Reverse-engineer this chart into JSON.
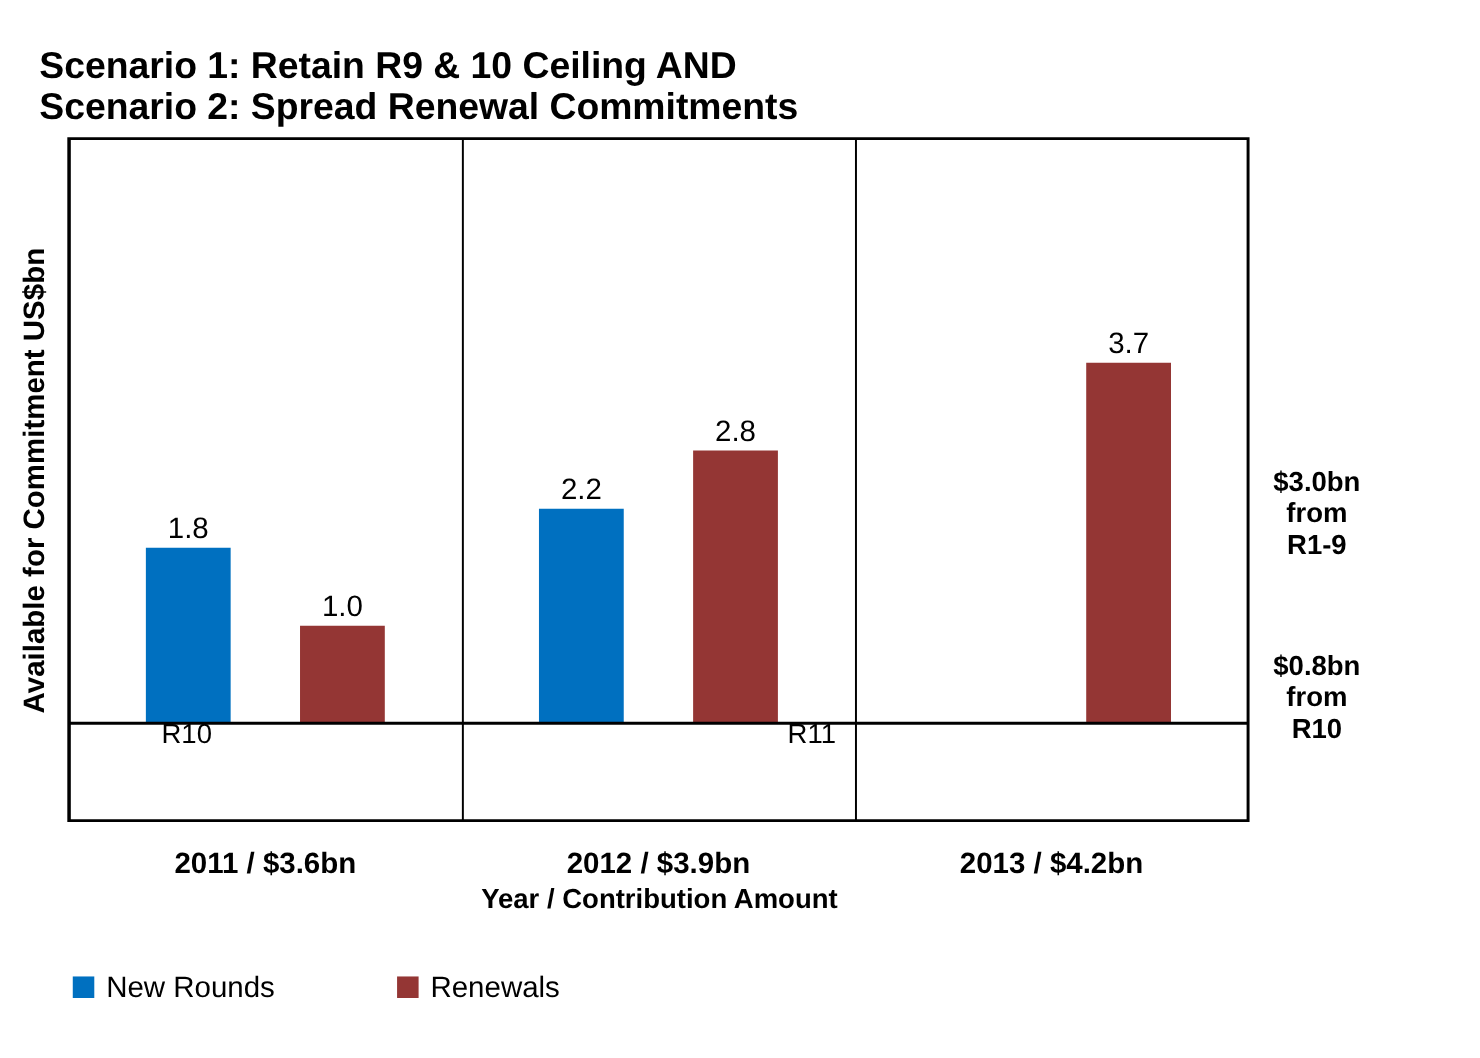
{
  "chart_data": {
    "type": "bar",
    "title": [
      "Scenario 1: Retain R9 & 10 Ceiling AND",
      "Scenario 2: Spread  Renewal Commitments"
    ],
    "xlabel": "Year / Contribution Amount",
    "ylabel": "Available for Commitment US$bn",
    "categories": [
      "2011 / $3.6bn",
      "2012 / $3.9bn",
      "2013 / $4.2bn"
    ],
    "series": [
      {
        "name": "New Rounds",
        "color": "#0070c0",
        "values": [
          1.8,
          2.2,
          null
        ],
        "value_labels": [
          "1.8",
          "2.2",
          null
        ]
      },
      {
        "name": "Renewals",
        "color": "#943634",
        "values": [
          1.0,
          2.8,
          3.7
        ],
        "value_labels": [
          "1.0",
          "2.8",
          "3.7"
        ]
      }
    ],
    "ylim": [
      -1.0,
      6.0
    ],
    "tick_labels": "x",
    "grid": "x",
    "legend": "bottom",
    "ref_lines": [
      {
        "axis": "y",
        "value": 0,
        "color": "#000000"
      }
    ],
    "annotations": [
      "R10",
      "R11",
      "$3.0bn\nfrom\nR1-9",
      "$0.8bn\nfrom\nR10"
    ]
  }
}
